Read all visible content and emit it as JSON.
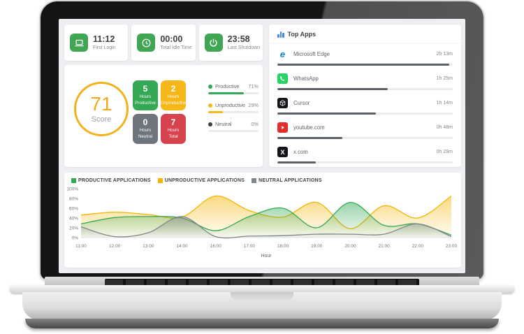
{
  "stats": [
    {
      "icon": "laptop-icon",
      "value": "11:12",
      "label": "First Login"
    },
    {
      "icon": "clock-icon",
      "value": "00:00",
      "label": "Total Idle Time"
    },
    {
      "icon": "power-icon",
      "value": "23:58",
      "label": "Last Shutdown"
    }
  ],
  "score": {
    "value": "71",
    "label": "Score"
  },
  "hour_tiles": [
    {
      "value": "5",
      "label1": "Hours",
      "label2": "Productive",
      "color": "#34a853"
    },
    {
      "value": "2",
      "label1": "Hours",
      "label2": "Unproductive",
      "color": "#f6b818"
    },
    {
      "value": "0",
      "label1": "Hours",
      "label2": "Neutral",
      "color": "#6e757c"
    },
    {
      "value": "7",
      "label1": "Hours",
      "label2": "Total",
      "color": "#d7424f"
    }
  ],
  "summary": [
    {
      "label": "Productive",
      "pct_label": "71%",
      "pct": 71,
      "color": "#34a853",
      "dot": "#34a853"
    },
    {
      "label": "Unproductive",
      "pct_label": "29%",
      "pct": 29,
      "color": "#f6b818",
      "dot": "#f6b818"
    },
    {
      "label": "Neutral",
      "pct_label": "0%",
      "pct": 0,
      "color": "#3c4043",
      "dot": "#3c4043"
    }
  ],
  "top_apps": {
    "title": "Top Apps",
    "items": [
      {
        "icon": "edge-app-icon",
        "name": "Microsoft Edge",
        "time": "2h 13m",
        "pct": 98
      },
      {
        "icon": "whatsapp-app-icon",
        "name": "WhatsApp",
        "time": "1h 25m",
        "pct": 63
      },
      {
        "icon": "cursor-app-icon",
        "name": "Cursor",
        "time": "1h 14m",
        "pct": 56
      },
      {
        "icon": "youtube-app-icon",
        "name": "youtube.com",
        "time": "0h 48m",
        "pct": 37
      },
      {
        "icon": "x-app-icon",
        "name": "x.com",
        "time": "0h 29m",
        "pct": 22
      }
    ]
  },
  "chart_data": {
    "type": "area",
    "title": "",
    "xlabel": "Hour",
    "ylabel": "",
    "ylim": [
      0,
      100
    ],
    "grid": false,
    "legend_position": "top-left",
    "x_ticks": [
      "11:00",
      "12:00",
      "13:00",
      "14:00",
      "16:00",
      "17:00",
      "18:00",
      "19:00",
      "20:00",
      "21:00",
      "22:00",
      "23:00"
    ],
    "y_ticks": [
      "100%",
      "80%",
      "60%",
      "40%",
      "20%",
      "0%"
    ],
    "legend": [
      "PRODUCTIVE APPLICATIONS",
      "UNPRODUCTIVE APPLICATIONS",
      "NEUTRAL APPLICATIONS"
    ],
    "series": [
      {
        "name": "PRODUCTIVE APPLICATIONS",
        "color": "#34a853",
        "values": [
          28,
          41,
          43,
          40,
          14,
          43,
          60,
          20,
          72,
          25,
          28,
          5
        ]
      },
      {
        "name": "UNPRODUCTIVE APPLICATIONS",
        "color": "#f4b400",
        "values": [
          46,
          52,
          47,
          42,
          85,
          55,
          42,
          72,
          18,
          65,
          40,
          85
        ]
      },
      {
        "name": "NEUTRAL APPLICATIONS",
        "color": "#7f868c",
        "values": [
          22,
          2,
          10,
          43,
          2,
          3,
          4,
          7,
          7,
          7,
          28,
          2
        ]
      }
    ],
    "draw_order": [
      1,
      0,
      2
    ]
  }
}
